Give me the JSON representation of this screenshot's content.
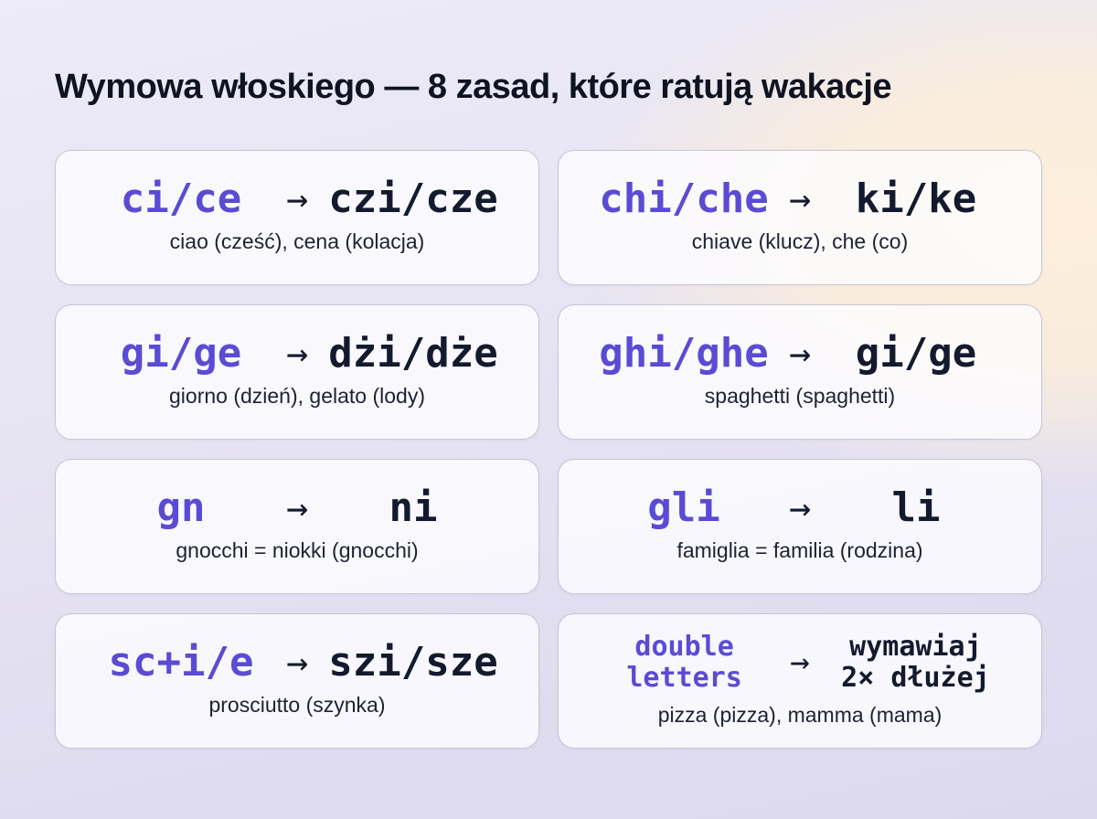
{
  "title": "Wymowa włoskiego — 8 zasad, które ratują wakacje",
  "arrow_glyph": "→",
  "colors": {
    "accent_purple": "#5b4bd4",
    "ink_navy": "#141a2e",
    "background_lavender": "#e6e3f3",
    "background_cream": "#fceeda",
    "card_background": "#fdfcff"
  },
  "cards": [
    {
      "from": "ci/ce",
      "to": "czi/cze",
      "example": "ciao (cześć), cena (kolacja)"
    },
    {
      "from": "chi/che",
      "to": "ki/ke",
      "example": "chiave (klucz), che (co)"
    },
    {
      "from": "gi/ge",
      "to": "dżi/dże",
      "example": "giorno (dzień), gelato (lody)"
    },
    {
      "from": "ghi/ghe",
      "to": "gi/ge",
      "example": "spaghetti (spaghetti)"
    },
    {
      "from": "gn",
      "to": "ni",
      "example": "gnocchi = niokki (gnocchi)"
    },
    {
      "from": "gli",
      "to": "li",
      "example": "famiglia = familia (rodzina)"
    },
    {
      "from": "sc+i/e",
      "to": "szi/sze",
      "example": "prosciutto (szynka)"
    },
    {
      "from": "double\nletters",
      "to": "wymawiaj\n2× dłużej",
      "example": "pizza (pizza), mamma (mama)"
    }
  ]
}
